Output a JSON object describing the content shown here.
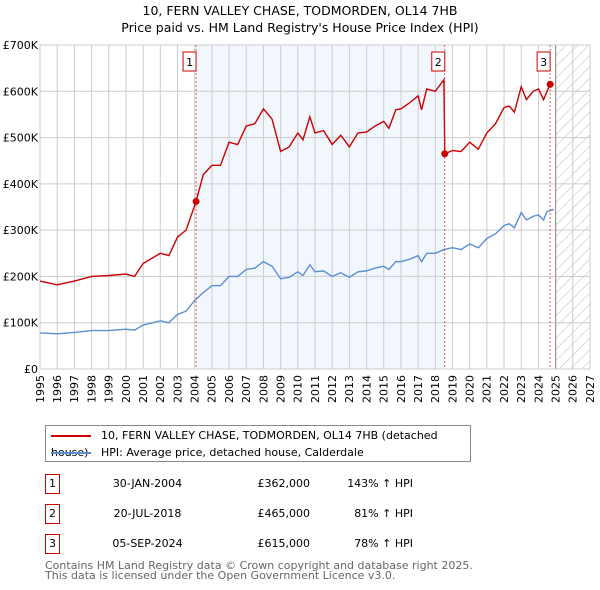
{
  "chart_data": {
    "type": "line",
    "title": "10, FERN VALLEY CHASE, TODMORDEN, OL14 7HB",
    "subtitle": "Price paid vs. HM Land Registry's House Price Index (HPI)",
    "xlim": [
      1995,
      2027
    ],
    "ylim": [
      0,
      700000
    ],
    "x_ticks": [
      "1995",
      "1996",
      "1997",
      "1998",
      "1999",
      "2000",
      "2001",
      "2002",
      "2003",
      "2004",
      "2005",
      "2006",
      "2007",
      "2008",
      "2009",
      "2010",
      "2011",
      "2012",
      "2013",
      "2014",
      "2015",
      "2016",
      "2017",
      "2018",
      "2019",
      "2020",
      "2021",
      "2022",
      "2023",
      "2024",
      "2025",
      "2026",
      "2027"
    ],
    "y_ticks": [
      {
        "v": 0,
        "label": "£0"
      },
      {
        "v": 100000,
        "label": "£100K"
      },
      {
        "v": 200000,
        "label": "£200K"
      },
      {
        "v": 300000,
        "label": "£300K"
      },
      {
        "v": 400000,
        "label": "£400K"
      },
      {
        "v": 500000,
        "label": "£500K"
      },
      {
        "v": 600000,
        "label": "£600K"
      },
      {
        "v": 700000,
        "label": "£700K"
      }
    ],
    "grid": true,
    "forecast_from": 2025,
    "series": [
      {
        "name": "10, FERN VALLEY CHASE, TODMORDEN, OL14 7HB (detached house)",
        "color": "#cc0000",
        "x": [
          1995,
          1996,
          1997,
          1998,
          1999,
          2000,
          2000.5,
          2001,
          2002,
          2002.5,
          2003,
          2003.5,
          2004.08,
          2004.5,
          2005,
          2005.5,
          2006,
          2006.5,
          2007,
          2007.5,
          2008,
          2008.5,
          2009,
          2009.5,
          2010,
          2010.3,
          2010.7,
          2011,
          2011.5,
          2012,
          2012.5,
          2013,
          2013.5,
          2014,
          2014.5,
          2015,
          2015.3,
          2015.7,
          2016,
          2016.5,
          2017,
          2017.2,
          2017.5,
          2018,
          2018.5,
          2018.55,
          2019,
          2019.5,
          2020,
          2020.5,
          2021,
          2021.5,
          2022,
          2022.3,
          2022.6,
          2023,
          2023.3,
          2023.7,
          2024,
          2024.3,
          2024.67,
          2024.9
        ],
        "values": [
          190000,
          182000,
          190000,
          200000,
          202000,
          205000,
          200000,
          228000,
          250000,
          245000,
          285000,
          300000,
          362000,
          420000,
          440000,
          440000,
          490000,
          485000,
          525000,
          530000,
          562000,
          540000,
          470000,
          480000,
          510000,
          495000,
          545000,
          510000,
          515000,
          485000,
          505000,
          480000,
          510000,
          512000,
          525000,
          535000,
          520000,
          560000,
          562000,
          575000,
          590000,
          560000,
          605000,
          600000,
          625000,
          465000,
          472000,
          470000,
          490000,
          475000,
          510000,
          530000,
          565000,
          568000,
          555000,
          610000,
          582000,
          600000,
          605000,
          582000,
          615000,
          615000
        ]
      },
      {
        "name": "HPI: Average price, detached house, Calderdale",
        "color": "#5b8fd4",
        "x": [
          1995,
          1996,
          1997,
          1998,
          1999,
          2000,
          2000.5,
          2001,
          2002,
          2002.5,
          2003,
          2003.5,
          2004,
          2004.5,
          2005,
          2005.5,
          2006,
          2006.5,
          2007,
          2007.5,
          2008,
          2008.5,
          2009,
          2009.5,
          2010,
          2010.3,
          2010.7,
          2011,
          2011.5,
          2012,
          2012.5,
          2013,
          2013.5,
          2014,
          2014.5,
          2015,
          2015.3,
          2015.7,
          2016,
          2016.5,
          2017,
          2017.2,
          2017.5,
          2018,
          2018.5,
          2019,
          2019.5,
          2020,
          2020.5,
          2021,
          2021.5,
          2022,
          2022.3,
          2022.6,
          2023,
          2023.3,
          2023.7,
          2024,
          2024.3,
          2024.5,
          2024.9
        ],
        "values": [
          78000,
          76000,
          79000,
          83000,
          83000,
          86000,
          84000,
          95000,
          104000,
          100000,
          118000,
          125000,
          148000,
          165000,
          180000,
          180000,
          200000,
          200000,
          215000,
          218000,
          232000,
          222000,
          195000,
          198000,
          210000,
          202000,
          225000,
          210000,
          212000,
          200000,
          208000,
          198000,
          210000,
          212000,
          218000,
          222000,
          215000,
          232000,
          232000,
          237000,
          245000,
          232000,
          250000,
          250000,
          258000,
          262000,
          258000,
          270000,
          262000,
          282000,
          292000,
          310000,
          314000,
          305000,
          338000,
          322000,
          330000,
          333000,
          322000,
          340000,
          345000
        ]
      }
    ],
    "sales": [
      {
        "n": "1",
        "x": 2004.08,
        "price": 362000,
        "date": "30-JAN-2004",
        "price_label": "£362,000",
        "hpi": "143% ↑ HPI"
      },
      {
        "n": "2",
        "x": 2018.55,
        "price": 465000,
        "date": "20-JUL-2018",
        "price_label": "£465,000",
        "hpi": "81% ↑ HPI"
      },
      {
        "n": "3",
        "x": 2024.68,
        "price": 615000,
        "date": "05-SEP-2024",
        "price_label": "£615,000",
        "hpi": "78% ↑ HPI"
      }
    ]
  },
  "footer": {
    "line1": "Contains HM Land Registry data © Crown copyright and database right 2025.",
    "line2": "This data is licensed under the Open Government Licence v3.0."
  }
}
